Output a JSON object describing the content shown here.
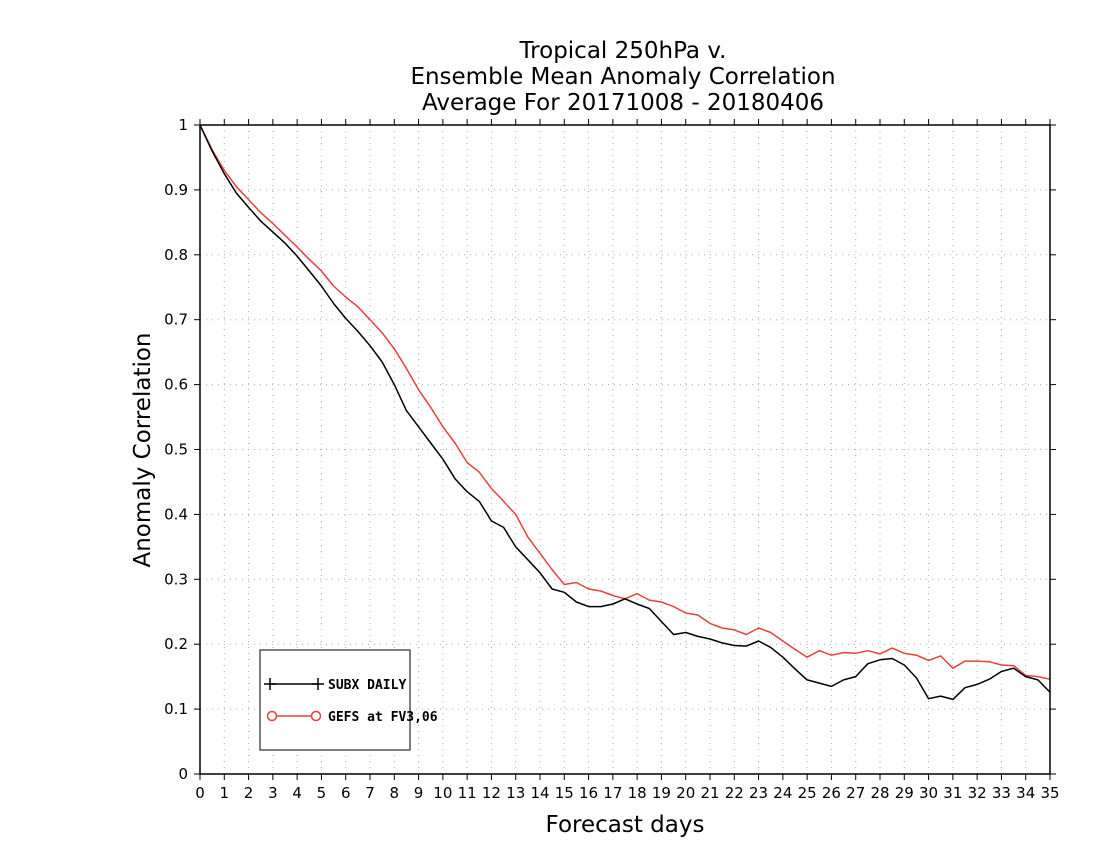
{
  "chart_data": {
    "type": "line",
    "title": [
      "Tropical 250hPa v.",
      "Ensemble Mean Anomaly Correlation",
      "Average For 20171008 - 20180406"
    ],
    "xlabel": "Forecast days",
    "ylabel": "Anomaly Correlation",
    "xlim": [
      0,
      35
    ],
    "ylim": [
      0,
      1
    ],
    "xticks": [
      0,
      1,
      2,
      3,
      4,
      5,
      6,
      7,
      8,
      9,
      10,
      11,
      12,
      13,
      14,
      15,
      16,
      17,
      18,
      19,
      20,
      21,
      22,
      23,
      24,
      25,
      26,
      27,
      28,
      29,
      30,
      31,
      32,
      33,
      34,
      35
    ],
    "yticks": [
      0,
      0.1,
      0.2,
      0.3,
      0.4,
      0.5,
      0.6,
      0.7,
      0.8,
      0.9,
      1
    ],
    "ytick_labels": [
      "0",
      "0.1",
      "0.2",
      "0.3",
      "0.4",
      "0.5",
      "0.6",
      "0.7",
      "0.8",
      "0.9",
      "1"
    ],
    "grid": true,
    "legend_position": "bottom-left",
    "series": [
      {
        "name": "SUBX DAILY",
        "color": "#000000",
        "marker": "plus",
        "x": [
          0,
          0.5,
          1,
          1.5,
          2,
          2.5,
          3,
          3.5,
          4,
          4.5,
          5,
          5.5,
          6,
          6.5,
          7,
          7.5,
          8,
          8.5,
          9,
          9.5,
          10,
          10.5,
          11,
          11.5,
          12,
          12.5,
          13,
          13.5,
          14,
          14.5,
          15,
          15.5,
          16,
          16.5,
          17,
          17.5,
          18,
          18.5,
          19,
          19.5,
          20,
          20.5,
          21,
          21.5,
          22,
          22.5,
          23,
          23.5,
          24,
          24.5,
          25,
          25.5,
          26,
          26.5,
          27,
          27.5,
          28,
          28.5,
          29,
          29.5,
          30,
          30.5,
          31,
          31.5,
          32,
          32.5,
          33,
          33.5,
          34,
          34.5,
          35
        ],
        "y": [
          1.0,
          0.96,
          0.925,
          0.895,
          0.873,
          0.852,
          0.835,
          0.818,
          0.798,
          0.775,
          0.752,
          0.725,
          0.702,
          0.682,
          0.66,
          0.635,
          0.6,
          0.56,
          0.535,
          0.51,
          0.485,
          0.455,
          0.435,
          0.42,
          0.39,
          0.38,
          0.35,
          0.33,
          0.31,
          0.285,
          0.28,
          0.265,
          0.258,
          0.258,
          0.262,
          0.27,
          0.262,
          0.255,
          0.235,
          0.215,
          0.218,
          0.212,
          0.208,
          0.202,
          0.198,
          0.197,
          0.205,
          0.195,
          0.18,
          0.162,
          0.145,
          0.14,
          0.135,
          0.145,
          0.15,
          0.17,
          0.176,
          0.178,
          0.168,
          0.148,
          0.116,
          0.12,
          0.115,
          0.133,
          0.138,
          0.146,
          0.158,
          0.163,
          0.15,
          0.145,
          0.126
        ]
      },
      {
        "name": "GEFS at FV3,06",
        "color": "#e8403a",
        "marker": "circle",
        "x": [
          0,
          0.5,
          1,
          1.5,
          2,
          2.5,
          3,
          3.5,
          4,
          4.5,
          5,
          5.5,
          6,
          6.5,
          7,
          7.5,
          8,
          8.5,
          9,
          9.5,
          10,
          10.5,
          11,
          11.5,
          12,
          12.5,
          13,
          13.5,
          14,
          14.5,
          15,
          15.5,
          16,
          16.5,
          17,
          17.5,
          18,
          18.5,
          19,
          19.5,
          20,
          20.5,
          21,
          21.5,
          22,
          22.5,
          23,
          23.5,
          24,
          24.5,
          25,
          25.5,
          26,
          26.5,
          27,
          27.5,
          28,
          28.5,
          29,
          29.5,
          30,
          30.5,
          31,
          31.5,
          32,
          32.5,
          33,
          33.5,
          34,
          34.5,
          35
        ],
        "y": [
          1.0,
          0.962,
          0.93,
          0.905,
          0.885,
          0.865,
          0.848,
          0.83,
          0.812,
          0.793,
          0.775,
          0.752,
          0.735,
          0.72,
          0.7,
          0.68,
          0.655,
          0.625,
          0.592,
          0.565,
          0.535,
          0.51,
          0.48,
          0.465,
          0.44,
          0.42,
          0.4,
          0.365,
          0.34,
          0.315,
          0.292,
          0.295,
          0.285,
          0.282,
          0.275,
          0.27,
          0.278,
          0.268,
          0.265,
          0.258,
          0.248,
          0.245,
          0.232,
          0.225,
          0.222,
          0.215,
          0.225,
          0.218,
          0.205,
          0.192,
          0.18,
          0.19,
          0.183,
          0.187,
          0.186,
          0.19,
          0.185,
          0.194,
          0.186,
          0.183,
          0.175,
          0.182,
          0.163,
          0.174,
          0.174,
          0.173,
          0.168,
          0.167,
          0.152,
          0.15,
          0.146
        ]
      }
    ]
  }
}
